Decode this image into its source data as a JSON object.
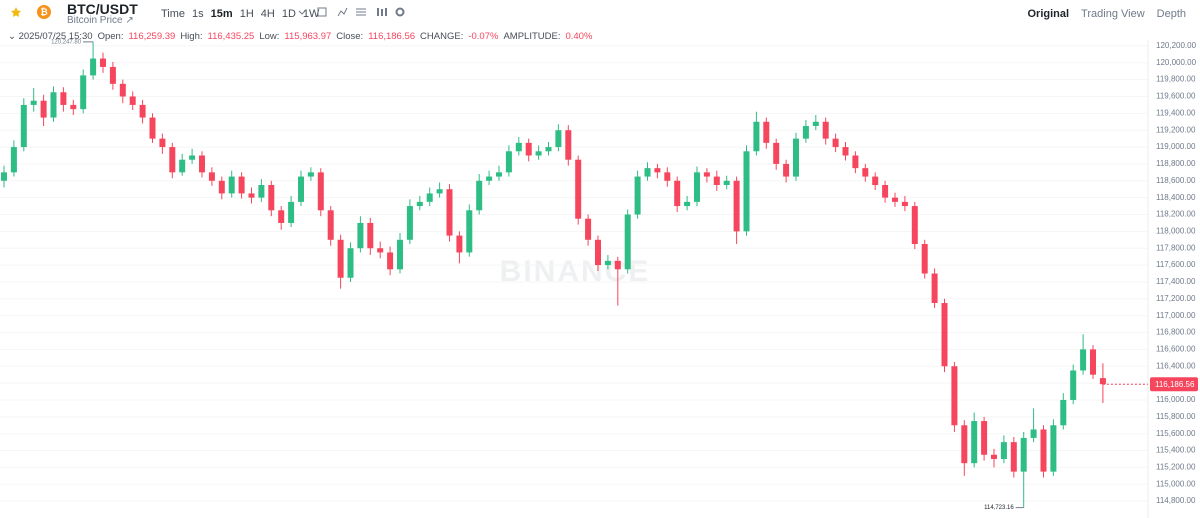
{
  "header": {
    "pair": "BTC/USDT",
    "subtitle": "Bitcoin Price ↗",
    "intervals": [
      "Time",
      "1s",
      "15m",
      "1H",
      "4H",
      "1D",
      "1W"
    ],
    "views": [
      "Original",
      "Trading View",
      "Depth"
    ]
  },
  "info": {
    "date": "2025/07/25 15:30",
    "items": [
      {
        "label": "Open:",
        "value": "116,259.39"
      },
      {
        "label": "High:",
        "value": "116,435.25"
      },
      {
        "label": "Low:",
        "value": "115,963.97"
      },
      {
        "label": "Close:",
        "value": "116,186.56"
      },
      {
        "label": "CHANGE:",
        "value": "-0.07%"
      },
      {
        "label": "AMPLITUDE:",
        "value": "0.40%"
      }
    ]
  },
  "watermark": "BINANCE",
  "chart_data": {
    "type": "candlestick",
    "up_color": "#2ebd85",
    "down_color": "#f6465d",
    "grid": true,
    "ylim": [
      114600,
      120270
    ],
    "yticks": [
      {
        "value": 114800,
        "label": "114,800.00"
      },
      {
        "value": 115000,
        "label": "115,000.00"
      },
      {
        "value": 115200,
        "label": "115,200.00"
      },
      {
        "value": 115400,
        "label": "115,400.00"
      },
      {
        "value": 115600,
        "label": "115,600.00"
      },
      {
        "value": 115800,
        "label": "115,800.00"
      },
      {
        "value": 116000,
        "label": "116,000.00"
      },
      {
        "value": 116200,
        "label": "116,200.00"
      },
      {
        "value": 116400,
        "label": "116,400.00"
      },
      {
        "value": 116600,
        "label": "116,600.00"
      },
      {
        "value": 116800,
        "label": "116,800.00"
      },
      {
        "value": 117000,
        "label": "117,000.00"
      },
      {
        "value": 117200,
        "label": "117,200.00"
      },
      {
        "value": 117400,
        "label": "117,400.00"
      },
      {
        "value": 117600,
        "label": "117,600.00"
      },
      {
        "value": 117800,
        "label": "117,800.00"
      },
      {
        "value": 118000,
        "label": "118,000.00"
      },
      {
        "value": 118200,
        "label": "118,200.00"
      },
      {
        "value": 118400,
        "label": "118,400.00"
      },
      {
        "value": 118600,
        "label": "118,600.00"
      },
      {
        "value": 118800,
        "label": "118,800.00"
      },
      {
        "value": 119000,
        "label": "119,000.00"
      },
      {
        "value": 119200,
        "label": "119,200.00"
      },
      {
        "value": 119400,
        "label": "119,400.00"
      },
      {
        "value": 119600,
        "label": "119,600.00"
      },
      {
        "value": 119800,
        "label": "119,800.00"
      },
      {
        "value": 120000,
        "label": "120,000.00"
      },
      {
        "value": 120200,
        "label": "120,200.00"
      }
    ],
    "last_price_label": "116,186.56",
    "high_label": "120,247.80",
    "low_label": "114,723.16",
    "candles": [
      [
        118600,
        118780,
        118520,
        118700
      ],
      [
        118700,
        119080,
        118650,
        119000
      ],
      [
        119000,
        119580,
        118950,
        119500
      ],
      [
        119500,
        119700,
        119420,
        119550
      ],
      [
        119550,
        119620,
        119250,
        119350
      ],
      [
        119350,
        119720,
        119300,
        119650
      ],
      [
        119650,
        119710,
        119420,
        119500
      ],
      [
        119500,
        119560,
        119380,
        119450
      ],
      [
        119450,
        119920,
        119400,
        119850
      ],
      [
        119850,
        120247.8,
        119800,
        120050
      ],
      [
        120050,
        120120,
        119880,
        119950
      ],
      [
        119950,
        120010,
        119680,
        119750
      ],
      [
        119750,
        119800,
        119520,
        119600
      ],
      [
        119600,
        119660,
        119440,
        119500
      ],
      [
        119500,
        119560,
        119280,
        119350
      ],
      [
        119350,
        119400,
        119050,
        119100
      ],
      [
        119100,
        119160,
        118920,
        119000
      ],
      [
        119000,
        119050,
        118630,
        118700
      ],
      [
        118700,
        118920,
        118660,
        118850
      ],
      [
        118850,
        118980,
        118800,
        118900
      ],
      [
        118900,
        118950,
        118640,
        118700
      ],
      [
        118700,
        118760,
        118540,
        118600
      ],
      [
        118600,
        118650,
        118380,
        118450
      ],
      [
        118450,
        118720,
        118400,
        118650
      ],
      [
        118650,
        118700,
        118390,
        118450
      ],
      [
        118450,
        118520,
        118330,
        118400
      ],
      [
        118400,
        118620,
        118350,
        118550
      ],
      [
        118550,
        118600,
        118180,
        118250
      ],
      [
        118250,
        118300,
        118020,
        118100
      ],
      [
        118100,
        118420,
        118050,
        118350
      ],
      [
        118350,
        118720,
        118300,
        118650
      ],
      [
        118650,
        118760,
        118600,
        118700
      ],
      [
        118700,
        118750,
        118180,
        118250
      ],
      [
        118250,
        118300,
        117830,
        117900
      ],
      [
        117900,
        117960,
        117320,
        117450
      ],
      [
        117450,
        117870,
        117400,
        117800
      ],
      [
        117800,
        118180,
        117750,
        118100
      ],
      [
        118100,
        118160,
        117720,
        117800
      ],
      [
        117800,
        117880,
        117680,
        117750
      ],
      [
        117750,
        117820,
        117480,
        117550
      ],
      [
        117550,
        117980,
        117500,
        117900
      ],
      [
        117900,
        118380,
        117850,
        118300
      ],
      [
        118300,
        118420,
        118250,
        118350
      ],
      [
        118350,
        118520,
        118300,
        118450
      ],
      [
        118450,
        118580,
        118400,
        118500
      ],
      [
        118500,
        118560,
        117880,
        117950
      ],
      [
        117950,
        118000,
        117620,
        117750
      ],
      [
        117750,
        118320,
        117700,
        118250
      ],
      [
        118250,
        118680,
        118200,
        118600
      ],
      [
        118600,
        118720,
        118550,
        118650
      ],
      [
        118650,
        118780,
        118600,
        118700
      ],
      [
        118700,
        119020,
        118650,
        118950
      ],
      [
        118950,
        119120,
        118900,
        119050
      ],
      [
        119050,
        119100,
        118830,
        118900
      ],
      [
        118900,
        119020,
        118850,
        118950
      ],
      [
        118950,
        119060,
        118900,
        119000
      ],
      [
        119000,
        119270,
        118950,
        119200
      ],
      [
        119200,
        119260,
        118780,
        118850
      ],
      [
        118850,
        118900,
        118080,
        118150
      ],
      [
        118150,
        118200,
        117830,
        117900
      ],
      [
        117900,
        117950,
        117530,
        117600
      ],
      [
        117600,
        117720,
        117550,
        117650
      ],
      [
        117650,
        117700,
        117120,
        117550
      ],
      [
        117550,
        118260,
        117500,
        118200
      ],
      [
        118200,
        118720,
        118150,
        118650
      ],
      [
        118650,
        118820,
        118600,
        118750
      ],
      [
        118750,
        118800,
        118630,
        118700
      ],
      [
        118700,
        118760,
        118530,
        118600
      ],
      [
        118600,
        118650,
        118230,
        118300
      ],
      [
        118300,
        118420,
        118250,
        118350
      ],
      [
        118350,
        118770,
        118300,
        118700
      ],
      [
        118700,
        118750,
        118580,
        118650
      ],
      [
        118650,
        118720,
        118480,
        118550
      ],
      [
        118550,
        118660,
        118500,
        118600
      ],
      [
        118600,
        118650,
        117850,
        118000
      ],
      [
        118000,
        119020,
        117950,
        118950
      ],
      [
        118950,
        119420,
        118900,
        119300
      ],
      [
        119300,
        119350,
        118980,
        119050
      ],
      [
        119050,
        119100,
        118730,
        118800
      ],
      [
        118800,
        118850,
        118580,
        118650
      ],
      [
        118650,
        119170,
        118600,
        119100
      ],
      [
        119100,
        119320,
        119050,
        119250
      ],
      [
        119250,
        119380,
        119200,
        119300
      ],
      [
        119300,
        119350,
        119030,
        119100
      ],
      [
        119100,
        119160,
        118940,
        119000
      ],
      [
        119000,
        119060,
        118840,
        118900
      ],
      [
        118900,
        118950,
        118690,
        118750
      ],
      [
        118750,
        118800,
        118590,
        118650
      ],
      [
        118650,
        118700,
        118490,
        118550
      ],
      [
        118550,
        118600,
        118340,
        118400
      ],
      [
        118400,
        118460,
        118290,
        118350
      ],
      [
        118350,
        118420,
        118240,
        118300
      ],
      [
        118300,
        118350,
        117790,
        117850
      ],
      [
        117850,
        117900,
        117440,
        117500
      ],
      [
        117500,
        117560,
        117090,
        117150
      ],
      [
        117150,
        117200,
        116330,
        116400
      ],
      [
        116400,
        116450,
        115620,
        115700
      ],
      [
        115700,
        115760,
        115100,
        115250
      ],
      [
        115250,
        115850,
        115200,
        115750
      ],
      [
        115750,
        115800,
        115280,
        115350
      ],
      [
        115350,
        115420,
        115200,
        115300
      ],
      [
        115300,
        115580,
        115250,
        115500
      ],
      [
        115500,
        115560,
        115080,
        115150
      ],
      [
        115150,
        115620,
        114723.16,
        115550
      ],
      [
        115550,
        115900,
        115500,
        115650
      ],
      [
        115650,
        115700,
        115080,
        115150
      ],
      [
        115150,
        115770,
        115100,
        115700
      ],
      [
        115700,
        116080,
        115650,
        116000
      ],
      [
        116000,
        116420,
        115950,
        116350
      ],
      [
        116350,
        116780,
        116300,
        116600
      ],
      [
        116600,
        116650,
        116250,
        116300
      ],
      [
        116259.39,
        116435.25,
        115963.97,
        116186.56
      ]
    ]
  }
}
